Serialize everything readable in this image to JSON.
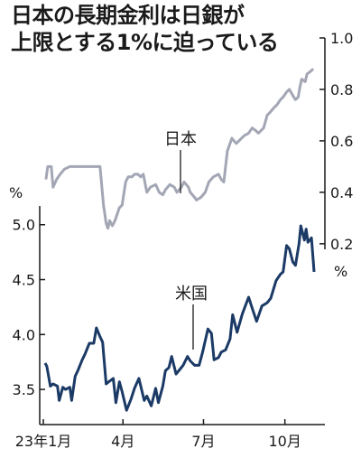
{
  "title_lines": [
    "日本の長期金利は日銀が",
    "上限とする1%に迫っている"
  ],
  "chart_data": {
    "type": "line",
    "x_ticks": [
      "23年1月",
      "4月",
      "7月",
      "10月"
    ],
    "x_range": [
      "2023-01-01",
      "2023-11-05"
    ],
    "series": [
      {
        "name": "日本",
        "axis": "right",
        "color": "#a3a6b4",
        "points": [
          [
            "2023-01-04",
            0.45
          ],
          [
            "2023-01-06",
            0.5
          ],
          [
            "2023-01-10",
            0.5
          ],
          [
            "2023-01-12",
            0.42
          ],
          [
            "2023-01-16",
            0.45
          ],
          [
            "2023-01-20",
            0.47
          ],
          [
            "2023-01-25",
            0.49
          ],
          [
            "2023-01-31",
            0.5
          ],
          [
            "2023-02-06",
            0.5
          ],
          [
            "2023-02-15",
            0.5
          ],
          [
            "2023-02-24",
            0.5
          ],
          [
            "2023-03-01",
            0.5
          ],
          [
            "2023-03-06",
            0.5
          ],
          [
            "2023-03-10",
            0.35
          ],
          [
            "2023-03-13",
            0.28
          ],
          [
            "2023-03-15",
            0.26
          ],
          [
            "2023-03-17",
            0.29
          ],
          [
            "2023-03-20",
            0.27
          ],
          [
            "2023-03-23",
            0.29
          ],
          [
            "2023-03-28",
            0.34
          ],
          [
            "2023-03-31",
            0.35
          ],
          [
            "2023-04-04",
            0.44
          ],
          [
            "2023-04-07",
            0.46
          ],
          [
            "2023-04-11",
            0.46
          ],
          [
            "2023-04-14",
            0.47
          ],
          [
            "2023-04-18",
            0.47
          ],
          [
            "2023-04-21",
            0.46
          ],
          [
            "2023-04-24",
            0.47
          ],
          [
            "2023-04-28",
            0.4
          ],
          [
            "2023-05-02",
            0.42
          ],
          [
            "2023-05-08",
            0.43
          ],
          [
            "2023-05-12",
            0.4
          ],
          [
            "2023-05-16",
            0.39
          ],
          [
            "2023-05-19",
            0.41
          ],
          [
            "2023-05-24",
            0.43
          ],
          [
            "2023-05-29",
            0.42
          ],
          [
            "2023-06-01",
            0.4
          ],
          [
            "2023-06-06",
            0.42
          ],
          [
            "2023-06-09",
            0.44
          ],
          [
            "2023-06-14",
            0.42
          ],
          [
            "2023-06-16",
            0.4
          ],
          [
            "2023-06-21",
            0.38
          ],
          [
            "2023-06-23",
            0.37
          ],
          [
            "2023-06-28",
            0.38
          ],
          [
            "2023-07-03",
            0.4
          ],
          [
            "2023-07-07",
            0.44
          ],
          [
            "2023-07-12",
            0.46
          ],
          [
            "2023-07-18",
            0.47
          ],
          [
            "2023-07-21",
            0.45
          ],
          [
            "2023-07-24",
            0.44
          ],
          [
            "2023-07-28",
            0.56
          ],
          [
            "2023-08-02",
            0.61
          ],
          [
            "2023-08-07",
            0.59
          ],
          [
            "2023-08-10",
            0.6
          ],
          [
            "2023-08-16",
            0.62
          ],
          [
            "2023-08-21",
            0.63
          ],
          [
            "2023-08-25",
            0.65
          ],
          [
            "2023-08-29",
            0.64
          ],
          [
            "2023-09-01",
            0.63
          ],
          [
            "2023-09-07",
            0.65
          ],
          [
            "2023-09-11",
            0.7
          ],
          [
            "2023-09-14",
            0.71
          ],
          [
            "2023-09-19",
            0.73
          ],
          [
            "2023-09-22",
            0.74
          ],
          [
            "2023-09-26",
            0.76
          ],
          [
            "2023-09-29",
            0.77
          ],
          [
            "2023-10-03",
            0.79
          ],
          [
            "2023-10-06",
            0.8
          ],
          [
            "2023-10-11",
            0.77
          ],
          [
            "2023-10-13",
            0.76
          ],
          [
            "2023-10-16",
            0.77
          ],
          [
            "2023-10-18",
            0.81
          ],
          [
            "2023-10-20",
            0.84
          ],
          [
            "2023-10-24",
            0.83
          ],
          [
            "2023-10-26",
            0.86
          ],
          [
            "2023-10-30",
            0.87
          ],
          [
            "2023-11-02",
            0.88
          ]
        ]
      },
      {
        "name": "米国",
        "axis": "left",
        "color": "#1b3a66",
        "points": [
          [
            "2023-01-03",
            3.74
          ],
          [
            "2023-01-05",
            3.71
          ],
          [
            "2023-01-09",
            3.53
          ],
          [
            "2023-01-12",
            3.55
          ],
          [
            "2023-01-17",
            3.53
          ],
          [
            "2023-01-19",
            3.4
          ],
          [
            "2023-01-23",
            3.52
          ],
          [
            "2023-01-26",
            3.5
          ],
          [
            "2023-01-31",
            3.52
          ],
          [
            "2023-02-02",
            3.4
          ],
          [
            "2023-02-06",
            3.62
          ],
          [
            "2023-02-09",
            3.67
          ],
          [
            "2023-02-14",
            3.77
          ],
          [
            "2023-02-17",
            3.82
          ],
          [
            "2023-02-22",
            3.92
          ],
          [
            "2023-02-27",
            3.92
          ],
          [
            "2023-03-02",
            4.06
          ],
          [
            "2023-03-06",
            3.98
          ],
          [
            "2023-03-09",
            3.93
          ],
          [
            "2023-03-13",
            3.55
          ],
          [
            "2023-03-16",
            3.57
          ],
          [
            "2023-03-21",
            3.6
          ],
          [
            "2023-03-24",
            3.38
          ],
          [
            "2023-03-28",
            3.57
          ],
          [
            "2023-03-31",
            3.48
          ],
          [
            "2023-04-05",
            3.31
          ],
          [
            "2023-04-10",
            3.41
          ],
          [
            "2023-04-14",
            3.51
          ],
          [
            "2023-04-19",
            3.6
          ],
          [
            "2023-04-25",
            3.4
          ],
          [
            "2023-04-28",
            3.44
          ],
          [
            "2023-05-03",
            3.35
          ],
          [
            "2023-05-08",
            3.51
          ],
          [
            "2023-05-11",
            3.38
          ],
          [
            "2023-05-16",
            3.53
          ],
          [
            "2023-05-19",
            3.67
          ],
          [
            "2023-05-23",
            3.7
          ],
          [
            "2023-05-26",
            3.8
          ],
          [
            "2023-05-31",
            3.64
          ],
          [
            "2023-06-05",
            3.69
          ],
          [
            "2023-06-08",
            3.72
          ],
          [
            "2023-06-13",
            3.8
          ],
          [
            "2023-06-16",
            3.76
          ],
          [
            "2023-06-21",
            3.72
          ],
          [
            "2023-06-26",
            3.72
          ],
          [
            "2023-06-30",
            3.84
          ],
          [
            "2023-07-06",
            4.05
          ],
          [
            "2023-07-10",
            4.01
          ],
          [
            "2023-07-13",
            3.77
          ],
          [
            "2023-07-18",
            3.79
          ],
          [
            "2023-07-21",
            3.84
          ],
          [
            "2023-07-26",
            3.86
          ],
          [
            "2023-07-31",
            3.96
          ],
          [
            "2023-08-03",
            4.18
          ],
          [
            "2023-08-08",
            4.02
          ],
          [
            "2023-08-14",
            4.19
          ],
          [
            "2023-08-21",
            4.34
          ],
          [
            "2023-08-25",
            4.24
          ],
          [
            "2023-08-30",
            4.12
          ],
          [
            "2023-09-05",
            4.26
          ],
          [
            "2023-09-11",
            4.29
          ],
          [
            "2023-09-15",
            4.33
          ],
          [
            "2023-09-21",
            4.49
          ],
          [
            "2023-09-26",
            4.55
          ],
          [
            "2023-09-29",
            4.57
          ],
          [
            "2023-10-03",
            4.81
          ],
          [
            "2023-10-06",
            4.78
          ],
          [
            "2023-10-10",
            4.66
          ],
          [
            "2023-10-13",
            4.63
          ],
          [
            "2023-10-17",
            4.83
          ],
          [
            "2023-10-19",
            4.99
          ],
          [
            "2023-10-23",
            4.86
          ],
          [
            "2023-10-25",
            4.96
          ],
          [
            "2023-10-27",
            4.84
          ],
          [
            "2023-10-31",
            4.88
          ],
          [
            "2023-11-02",
            4.67
          ],
          [
            "2023-11-03",
            4.57
          ]
        ]
      }
    ],
    "left_axis": {
      "unit": "%",
      "ticks": [
        "3.5",
        "4.0",
        "4.5",
        "5.0"
      ],
      "range": [
        3.18,
        5.22
      ]
    },
    "right_axis": {
      "unit": "%",
      "ticks": [
        "0.2",
        "0.4",
        "0.6",
        "0.8",
        "1.0"
      ],
      "range": [
        0.08,
        1.0
      ]
    },
    "grid": false
  }
}
